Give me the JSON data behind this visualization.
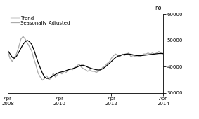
{
  "ylabel_right": "no.",
  "ylim": [
    30000,
    60000
  ],
  "yticks": [
    30000,
    40000,
    50000,
    60000
  ],
  "xlim": [
    0,
    72
  ],
  "xtick_positions": [
    0,
    24,
    48,
    72
  ],
  "xtick_labels": [
    "Apr\n2008",
    "Apr\n2010",
    "Apr\n2012",
    "Apr\n2014"
  ],
  "trend_color": "#000000",
  "seasonal_color": "#aaaaaa",
  "trend_linewidth": 0.9,
  "seasonal_linewidth": 0.9,
  "legend_items": [
    "Trend",
    "Seasonally Adjusted"
  ],
  "background_color": "#ffffff",
  "trend_data": [
    46000,
    44800,
    43500,
    43200,
    44000,
    45500,
    47000,
    48500,
    49500,
    50000,
    49500,
    48500,
    46500,
    44000,
    41500,
    39500,
    37500,
    36000,
    35500,
    35500,
    36000,
    36500,
    37000,
    37500,
    37800,
    38000,
    38200,
    38500,
    38800,
    39000,
    39200,
    39500,
    39800,
    40200,
    40500,
    40500,
    40200,
    39800,
    39500,
    39200,
    39000,
    38800,
    38700,
    38800,
    39200,
    39800,
    40500,
    41200,
    42000,
    42800,
    43500,
    44000,
    44200,
    44500,
    44700,
    44800,
    44800,
    44700,
    44500,
    44300,
    44200,
    44200,
    44200,
    44300,
    44400,
    44500,
    44600,
    44700,
    44800,
    44900,
    45000,
    45000,
    45000
  ],
  "seasonal_data": [
    45500,
    43000,
    42000,
    43500,
    45000,
    47500,
    50500,
    51500,
    50500,
    49000,
    47500,
    46000,
    43000,
    40500,
    37500,
    36000,
    34800,
    35500,
    36500,
    35000,
    35500,
    37500,
    36000,
    37000,
    37800,
    37200,
    38200,
    37800,
    38800,
    39200,
    38800,
    39800,
    40200,
    41000,
    39800,
    39200,
    38800,
    38200,
    38800,
    38200,
    38200,
    37800,
    38200,
    38800,
    39800,
    40200,
    41200,
    41800,
    43200,
    44200,
    44800,
    44200,
    43800,
    44800,
    44200,
    44800,
    45200,
    43800,
    44200,
    43800,
    44200,
    43800,
    44200,
    44800,
    44800,
    45200,
    44800,
    45200,
    44800,
    45200,
    45800,
    45200,
    44800
  ]
}
